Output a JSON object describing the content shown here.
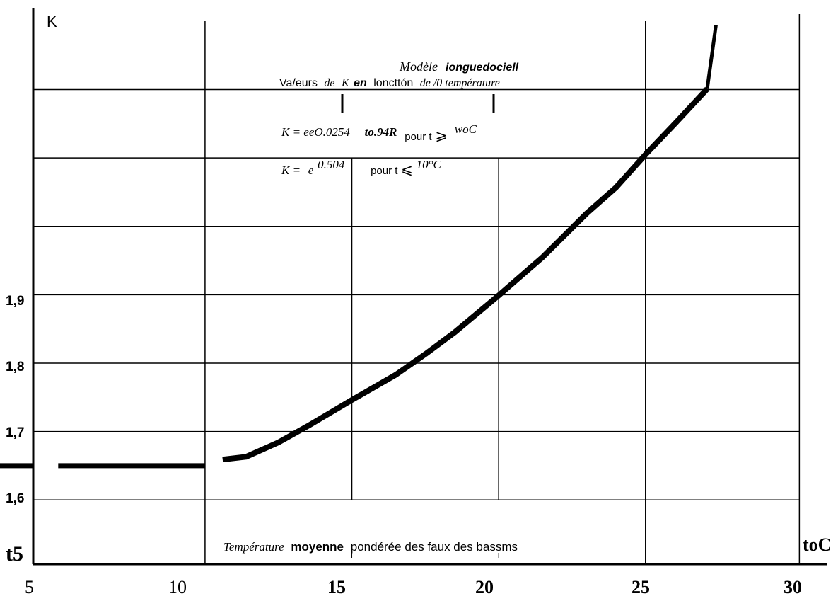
{
  "chart_data": {
    "type": "line",
    "ylabel": "K",
    "xlabel_unit": "toC",
    "origin_label": "t5",
    "x_ticks": [
      "5",
      "10",
      "15",
      "20",
      "25",
      "30"
    ],
    "y_ticks": [
      "1,6",
      "1,7",
      "1,8",
      "1,9"
    ],
    "title_line1_part1": "Modèle",
    "title_line1_part2": "ionguedociell",
    "title_line2_part1": "Va/eurs",
    "title_line2_part2": "de",
    "title_line2_part3": "K",
    "title_line2_part4": "en",
    "title_line2_part5": "loncttón",
    "title_line2_part6": "de /0 température",
    "formula1_part1": "K = eeO.0254",
    "formula1_part2": "to.94R",
    "formula1_part3": "pour t",
    "formula1_part4": "⩾",
    "formula1_part5": "woC",
    "formula2_part1": "K =",
    "formula2_part2": "e",
    "formula2_part3": "0.504",
    "formula2_part4": "pour t",
    "formula2_part5": "⩽",
    "formula2_part6": "10°C",
    "xlabel_part1": "Température",
    "xlabel_part2": "moyenne",
    "xlabel_part3": "pondérée des faux des bassms",
    "series": [
      {
        "x": [
          5,
          10
        ],
        "y": [
          1.65,
          1.65
        ]
      },
      {
        "x": [
          10.6,
          11.4,
          12.5,
          13.5,
          15.0,
          16.5,
          17.5,
          18.5,
          20.0,
          21.5,
          23.0,
          24.0,
          25.0,
          26.0,
          27.1
        ],
        "y": [
          1.659,
          1.663,
          1.684,
          1.708,
          1.746,
          1.783,
          1.813,
          1.845,
          1.899,
          1.955,
          2.019,
          2.057,
          2.105,
          2.15,
          2.201
        ]
      },
      {
        "x": [
          27.1,
          27.4
        ],
        "y": [
          2.201,
          2.294
        ]
      }
    ],
    "xlim": [
      4.15,
      30.4
    ],
    "ylim": [
      1.506,
      2.302
    ],
    "grid": true
  }
}
